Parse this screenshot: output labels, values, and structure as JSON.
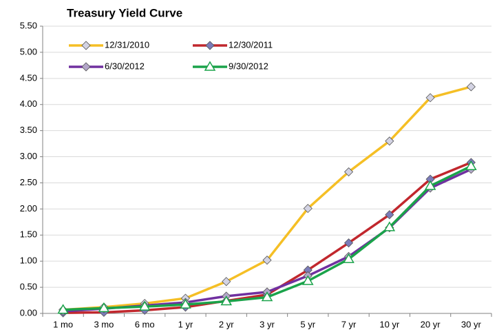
{
  "chart_data": {
    "type": "line",
    "title": "Treasury Yield Curve",
    "categories": [
      "1 mo",
      "3 mo",
      "6 mo",
      "1 yr",
      "2 yr",
      "3 yr",
      "5 yr",
      "7 yr",
      "10 yr",
      "20 yr",
      "30 yr"
    ],
    "series": [
      {
        "name": "12/31/2010",
        "color": "#f5bf25",
        "marker": "diamond",
        "marker_color": "#d3d3e3",
        "values": [
          0.07,
          0.12,
          0.19,
          0.29,
          0.61,
          1.02,
          2.01,
          2.71,
          3.3,
          4.13,
          4.34
        ]
      },
      {
        "name": "12/30/2011",
        "color": "#c1272d",
        "marker": "diamond",
        "marker_color": "#7b7bb9",
        "values": [
          0.01,
          0.02,
          0.06,
          0.12,
          0.24,
          0.36,
          0.83,
          1.35,
          1.89,
          2.57,
          2.89
        ]
      },
      {
        "name": "6/30/2012",
        "color": "#7030a0",
        "marker": "diamond",
        "marker_color": "#b3a6c9",
        "values": [
          0.04,
          0.09,
          0.15,
          0.21,
          0.33,
          0.41,
          0.72,
          1.09,
          1.64,
          2.4,
          2.76
        ]
      },
      {
        "name": "9/30/2012",
        "color": "#1aa34a",
        "marker": "triangle",
        "marker_color": "#ffffff",
        "values": [
          0.07,
          0.1,
          0.13,
          0.17,
          0.23,
          0.31,
          0.62,
          1.04,
          1.65,
          2.44,
          2.82
        ]
      }
    ],
    "ylim": [
      0,
      5.5
    ],
    "yticks": [
      {
        "value": 0,
        "label": "0.00"
      },
      {
        "value": 0.5,
        "label": "0.50"
      },
      {
        "value": 1,
        "label": "1.00"
      },
      {
        "value": 1.5,
        "label": "1.50"
      },
      {
        "value": 2,
        "label": "2.00"
      },
      {
        "value": 2.5,
        "label": "2.50"
      },
      {
        "value": 3,
        "label": "3.00"
      },
      {
        "value": 3.5,
        "label": "3.50"
      },
      {
        "value": 4,
        "label": "4.00"
      },
      {
        "value": 4.5,
        "label": "4.50"
      },
      {
        "value": 5,
        "label": "5.00"
      },
      {
        "value": 5.5,
        "label": "5.50"
      }
    ],
    "grid": true,
    "legend": "top-left"
  }
}
